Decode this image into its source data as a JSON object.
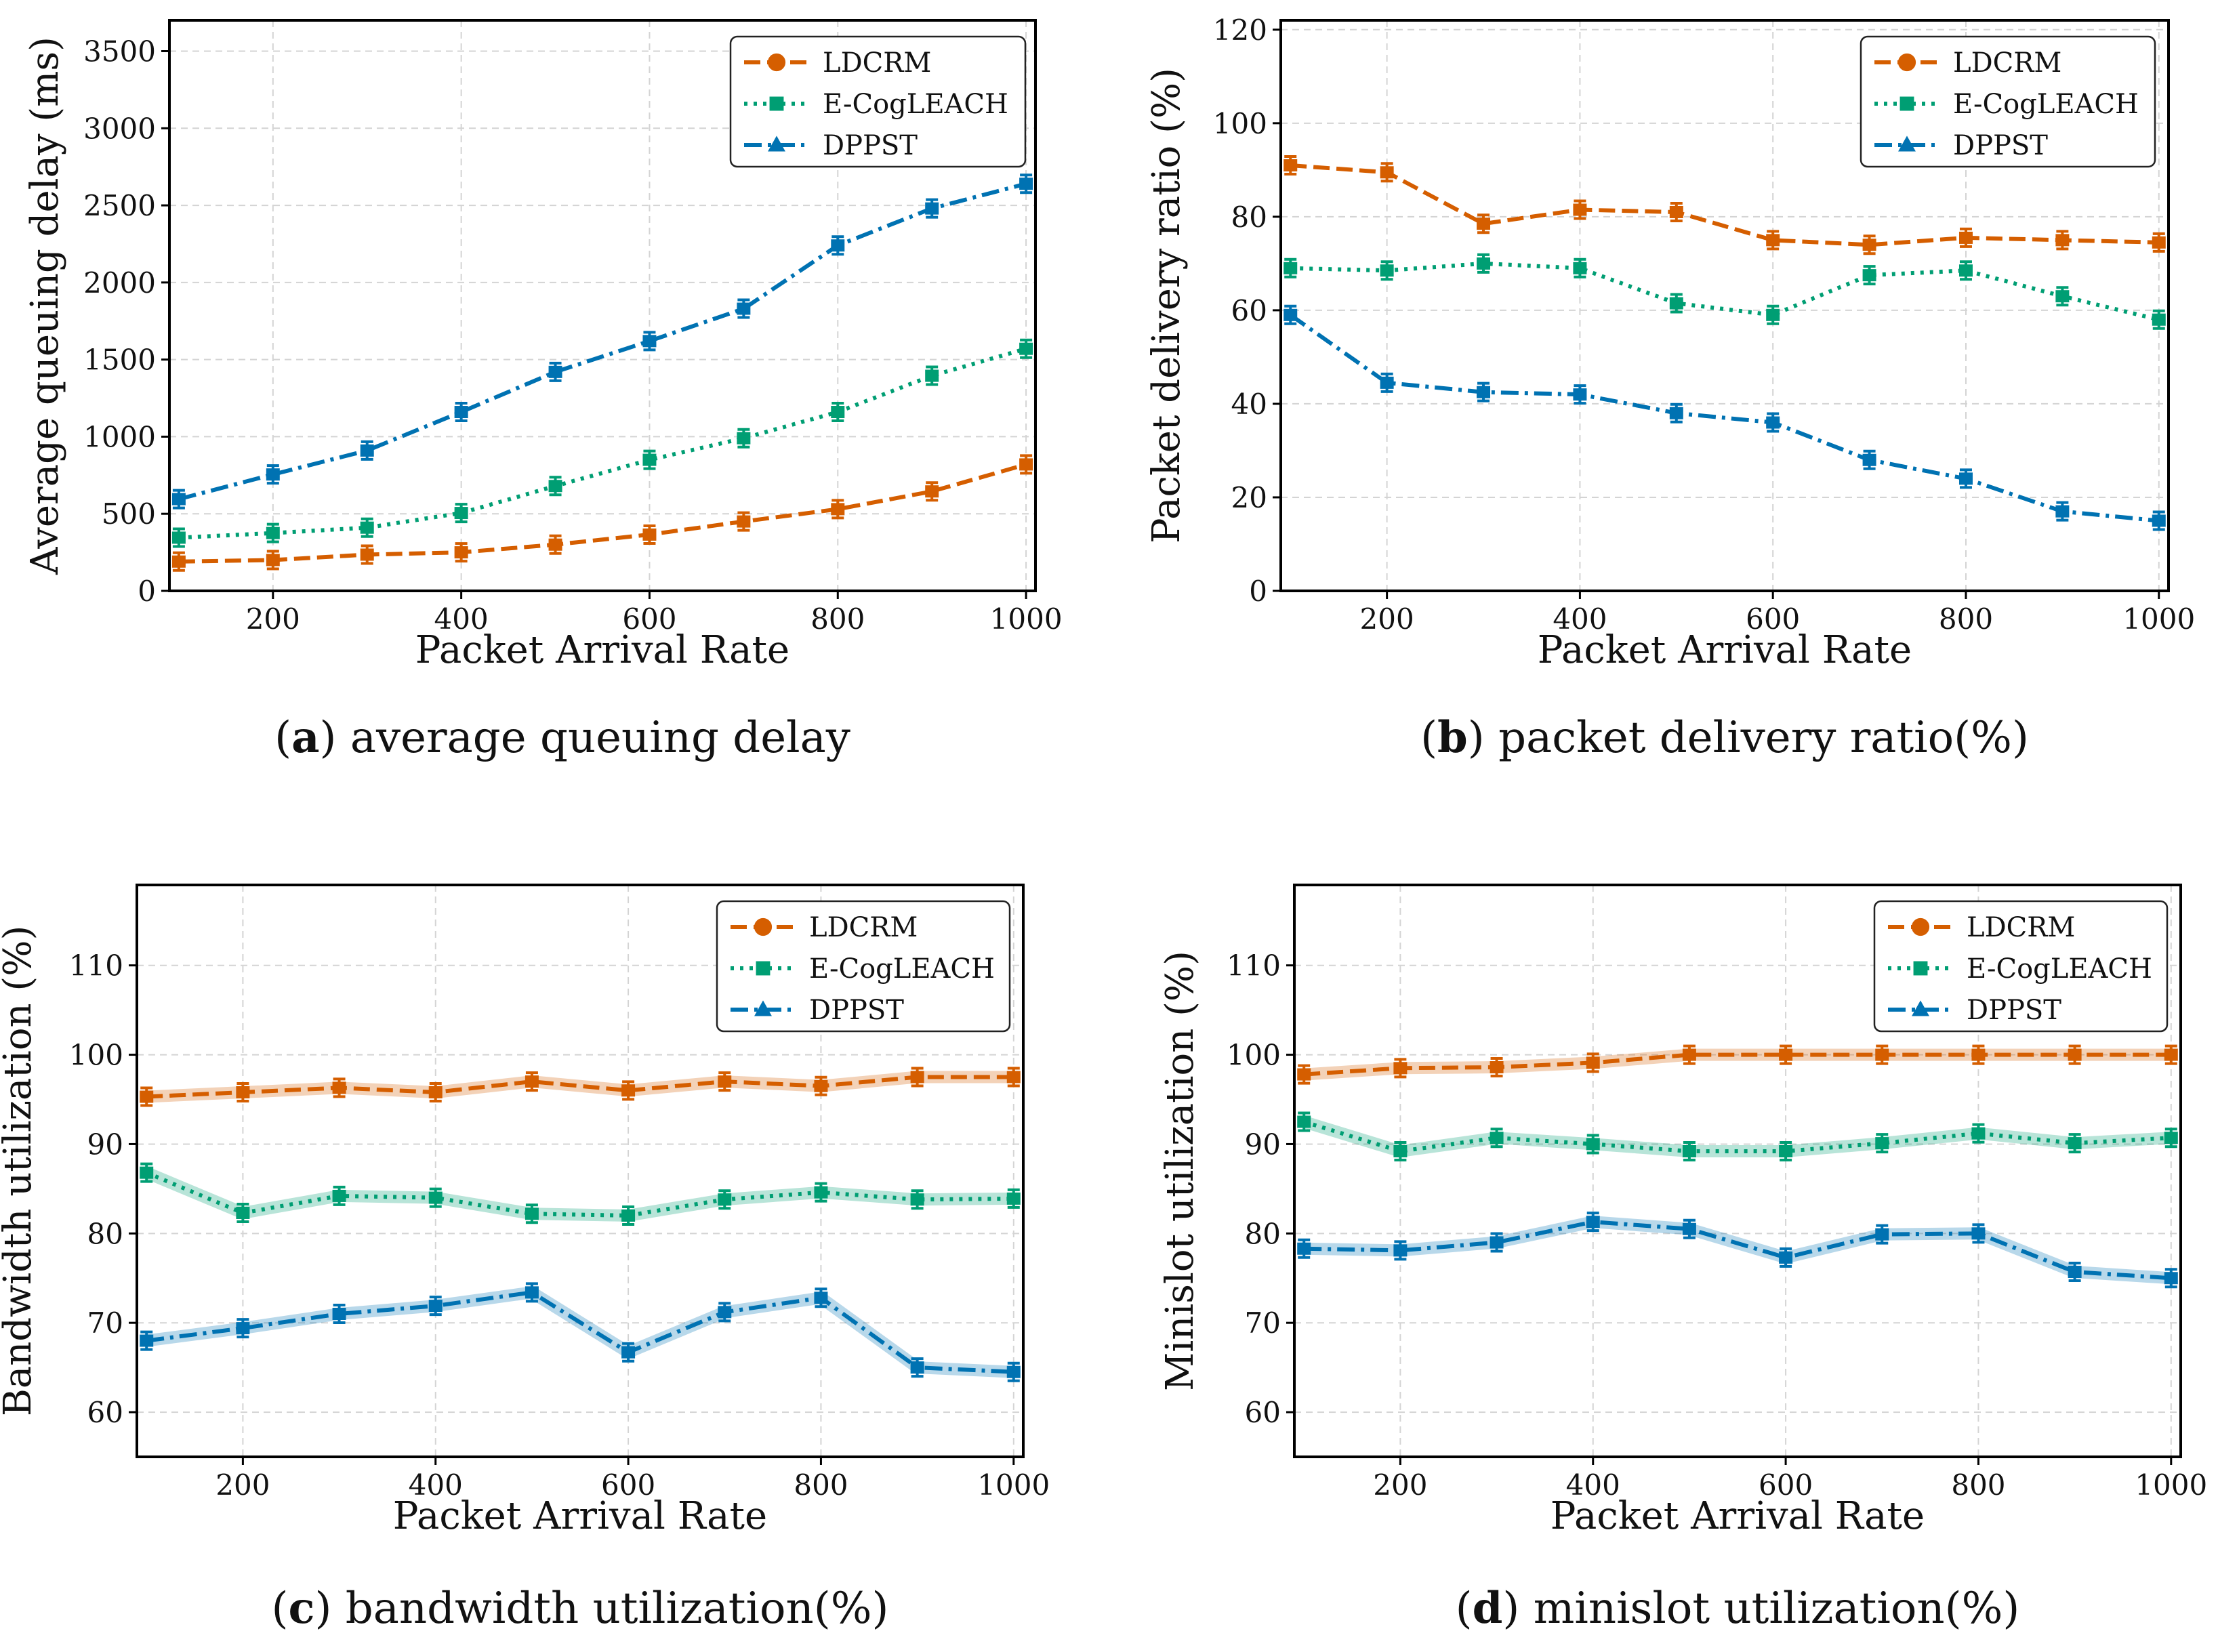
{
  "chart_data": [
    {
      "type": "line",
      "panel": "a",
      "caption_letter": "a",
      "caption_text": " average queuing delay",
      "xlabel": "Packet Arrival Rate",
      "ylabel": "Average queuing delay (ms)",
      "x": [
        100,
        200,
        300,
        400,
        500,
        600,
        700,
        800,
        900,
        1000
      ],
      "xlim": [
        90,
        1010
      ],
      "ylim": [
        0,
        3700
      ],
      "xticks": [
        200,
        400,
        600,
        800,
        1000
      ],
      "yticks": [
        0,
        500,
        1000,
        1500,
        2000,
        2500,
        3000,
        3500
      ],
      "legend_position": "top-right",
      "grid": true,
      "series": [
        {
          "name": "LDCRM",
          "color": "#d55e00",
          "dash": "dashed",
          "values": [
            190,
            200,
            235,
            250,
            300,
            365,
            450,
            530,
            645,
            820
          ]
        },
        {
          "name": "E-CogLEACH",
          "color": "#009e73",
          "dash": "dotted",
          "values": [
            345,
            375,
            410,
            505,
            680,
            850,
            990,
            1160,
            1395,
            1570
          ]
        },
        {
          "name": "DPPST",
          "color": "#0072b2",
          "dash": "dashdot",
          "values": [
            595,
            755,
            910,
            1160,
            1420,
            1620,
            1830,
            2240,
            2480,
            2640
          ]
        }
      ]
    },
    {
      "type": "line",
      "panel": "b",
      "caption_letter": "b",
      "caption_text": " packet delivery ratio(%)",
      "xlabel": "Packet Arrival Rate",
      "ylabel": "Packet delivery ratio (%)",
      "x": [
        100,
        200,
        300,
        400,
        500,
        600,
        700,
        800,
        900,
        1000
      ],
      "xlim": [
        90,
        1010
      ],
      "ylim": [
        0,
        122
      ],
      "xticks": [
        200,
        400,
        600,
        800,
        1000
      ],
      "yticks": [
        0,
        20,
        40,
        60,
        80,
        100,
        120
      ],
      "legend_position": "top-right",
      "grid": true,
      "series": [
        {
          "name": "LDCRM",
          "color": "#d55e00",
          "dash": "dashed",
          "values": [
            91,
            89.5,
            78.5,
            81.5,
            81,
            75,
            74,
            75.5,
            75,
            74.5
          ]
        },
        {
          "name": "E-CogLEACH",
          "color": "#009e73",
          "dash": "dotted",
          "values": [
            69,
            68.5,
            70,
            69,
            61.5,
            59,
            67.5,
            68.5,
            63,
            58
          ]
        },
        {
          "name": "DPPST",
          "color": "#0072b2",
          "dash": "dashdot",
          "values": [
            59,
            44.5,
            42.5,
            42,
            38,
            36,
            28,
            24,
            17,
            15
          ]
        }
      ]
    },
    {
      "type": "line",
      "panel": "c",
      "caption_letter": "c",
      "caption_text": " bandwidth utilization(%)",
      "xlabel": "Packet Arrival Rate",
      "ylabel": "Bandwidth utilization (%)",
      "x": [
        100,
        200,
        300,
        400,
        500,
        600,
        700,
        800,
        900,
        1000
      ],
      "xlim": [
        90,
        1010
      ],
      "ylim": [
        55,
        119
      ],
      "xticks": [
        200,
        400,
        600,
        800,
        1000
      ],
      "yticks": [
        60,
        70,
        80,
        90,
        100,
        110
      ],
      "legend_position": "top-right",
      "grid": true,
      "series": [
        {
          "name": "LDCRM",
          "color": "#d55e00",
          "dash": "dashed",
          "values": [
            95.3,
            95.8,
            96.3,
            95.8,
            97,
            96,
            97,
            96.5,
            97.5,
            97.5
          ]
        },
        {
          "name": "E-CogLEACH",
          "color": "#009e73",
          "dash": "dotted",
          "values": [
            86.8,
            82.3,
            84.2,
            84,
            82.2,
            82,
            83.8,
            84.6,
            83.8,
            83.9
          ]
        },
        {
          "name": "DPPST",
          "color": "#0072b2",
          "dash": "dashdot",
          "values": [
            68,
            69.4,
            71,
            71.9,
            73.4,
            66.7,
            71.2,
            72.8,
            65,
            64.5
          ]
        }
      ]
    },
    {
      "type": "line",
      "panel": "d",
      "caption_letter": "d",
      "caption_text": " minislot utilization(%)",
      "xlabel": "Packet Arrival Rate",
      "ylabel": "Minislot utilization (%)",
      "x": [
        100,
        200,
        300,
        400,
        500,
        600,
        700,
        800,
        900,
        1000
      ],
      "xlim": [
        90,
        1010
      ],
      "ylim": [
        55,
        119
      ],
      "xticks": [
        200,
        400,
        600,
        800,
        1000
      ],
      "yticks": [
        60,
        70,
        80,
        90,
        100,
        110
      ],
      "legend_position": "top-right",
      "grid": true,
      "series": [
        {
          "name": "LDCRM",
          "color": "#d55e00",
          "dash": "dashed",
          "values": [
            97.8,
            98.5,
            98.6,
            99.1,
            100,
            100,
            100,
            100,
            100,
            100
          ]
        },
        {
          "name": "E-CogLEACH",
          "color": "#009e73",
          "dash": "dotted",
          "values": [
            92.5,
            89.2,
            90.7,
            90,
            89.2,
            89.2,
            90.1,
            91.2,
            90.1,
            90.7
          ]
        },
        {
          "name": "DPPST",
          "color": "#0072b2",
          "dash": "dashdot",
          "values": [
            78.3,
            78.1,
            79,
            81.3,
            80.5,
            77.3,
            79.9,
            80,
            75.7,
            75
          ]
        }
      ]
    }
  ]
}
